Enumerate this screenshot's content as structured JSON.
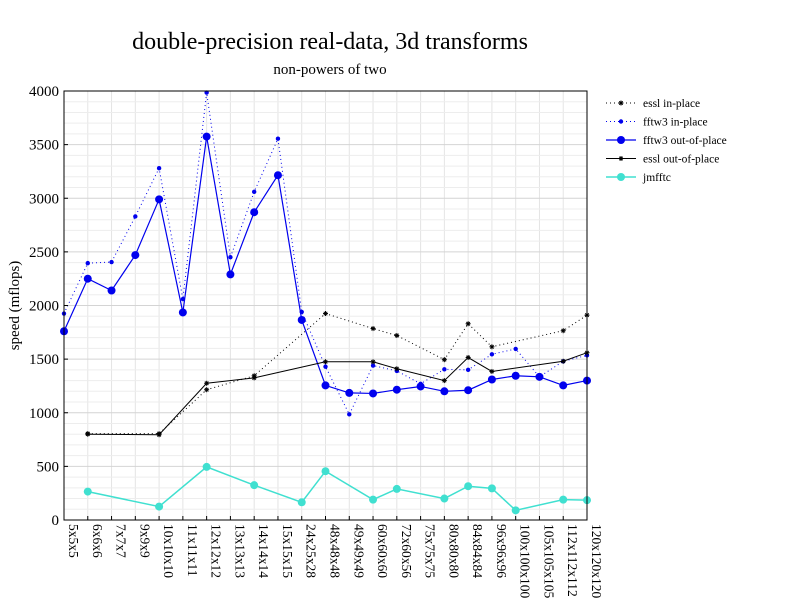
{
  "chart_data": {
    "type": "line",
    "title": "double-precision real-data, 3d transforms",
    "subtitle": "non-powers of two",
    "xlabel": "",
    "ylabel": "speed (mflops)",
    "ylim": [
      0,
      4000
    ],
    "yticks": [
      0,
      500,
      1000,
      1500,
      2000,
      2500,
      3000,
      3500,
      4000
    ],
    "grid": true,
    "legend_position": "top-right",
    "categories": [
      "5x5x5",
      "6x6x6",
      "7x7x7",
      "9x9x9",
      "10x10x10",
      "11x11x11",
      "12x12x12",
      "13x13x13",
      "14x14x14",
      "15x15x15",
      "24x25x28",
      "48x48x48",
      "49x49x49",
      "60x60x60",
      "72x60x56",
      "75x75x75",
      "80x80x80",
      "84x84x84",
      "96x96x96",
      "100x100x100",
      "105x105x105",
      "112x112x112",
      "120x120x120"
    ],
    "series": [
      {
        "name": "essl in-place",
        "color": "#000000",
        "dash": "1,3",
        "marker": "star",
        "marker_size": 2.5,
        "stroke_width": 1,
        "values": [
          null,
          805,
          null,
          null,
          805,
          null,
          1215,
          null,
          1345,
          null,
          null,
          1925,
          null,
          1785,
          1720,
          null,
          1495,
          1830,
          1615,
          null,
          null,
          1765,
          1910
        ]
      },
      {
        "name": "fftw3 in-place",
        "color": "#0000ee",
        "dash": "1,3",
        "marker": "dot",
        "marker_size": 2.2,
        "stroke_width": 1,
        "values": [
          1925,
          2395,
          2405,
          2830,
          3280,
          2060,
          3985,
          2450,
          3060,
          3555,
          1940,
          1430,
          985,
          1440,
          1390,
          1270,
          1405,
          1400,
          1545,
          1595,
          1335,
          1480,
          1535
        ]
      },
      {
        "name": "fftw3 out-of-place",
        "color": "#0000ee",
        "dash": "",
        "marker": "dot",
        "marker_size": 4,
        "stroke_width": 1.2,
        "values": [
          1760,
          2250,
          2140,
          2470,
          2990,
          1935,
          3575,
          2290,
          2870,
          3215,
          1865,
          1255,
          1185,
          1180,
          1215,
          1245,
          1200,
          1210,
          1310,
          1345,
          1335,
          1255,
          1300
        ]
      },
      {
        "name": "essl out-of-place",
        "color": "#000000",
        "dash": "",
        "marker": "star",
        "marker_size": 2.5,
        "stroke_width": 1,
        "values": [
          null,
          800,
          null,
          null,
          795,
          null,
          1275,
          null,
          1325,
          null,
          null,
          1475,
          null,
          1475,
          1410,
          null,
          1300,
          1515,
          1385,
          null,
          null,
          1480,
          1560
        ]
      },
      {
        "name": "jmfftc",
        "color": "#40e0d0",
        "dash": "",
        "marker": "dot",
        "marker_size": 4,
        "stroke_width": 1.5,
        "values": [
          null,
          265,
          null,
          null,
          125,
          null,
          495,
          null,
          325,
          null,
          165,
          455,
          null,
          190,
          290,
          null,
          200,
          315,
          295,
          90,
          null,
          190,
          185
        ]
      }
    ]
  }
}
